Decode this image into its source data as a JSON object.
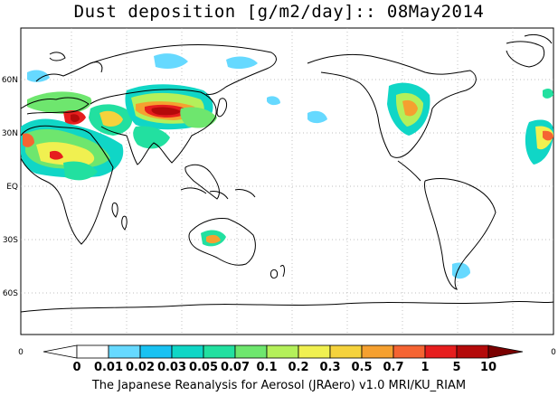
{
  "title": "Dust deposition [g/m2/day]:: 08May2014",
  "footer": "The Japanese Reanalysis for Aerosol (JRAero) v1.0 MRI/KU_RIAM",
  "lat_labels": [
    "60N",
    "30N",
    "EQ",
    "30S",
    "60S"
  ],
  "axis_corner_labels": {
    "left": "0",
    "right": "0"
  },
  "colorbar": {
    "labels": [
      "0",
      "0.01",
      "0.02",
      "0.03",
      "0.05",
      "0.07",
      "0.1",
      "0.2",
      "0.3",
      "0.5",
      "0.7",
      "1",
      "5",
      "10"
    ],
    "colors": [
      "#ffffff",
      "#ffffff",
      "#66d9ff",
      "#19c2f2",
      "#10d6c6",
      "#22e0a0",
      "#6ee66e",
      "#b4f05a",
      "#f0f050",
      "#f5d23c",
      "#f5a030",
      "#f56432",
      "#e61e1e",
      "#b40a0a",
      "#7a0000"
    ]
  }
}
